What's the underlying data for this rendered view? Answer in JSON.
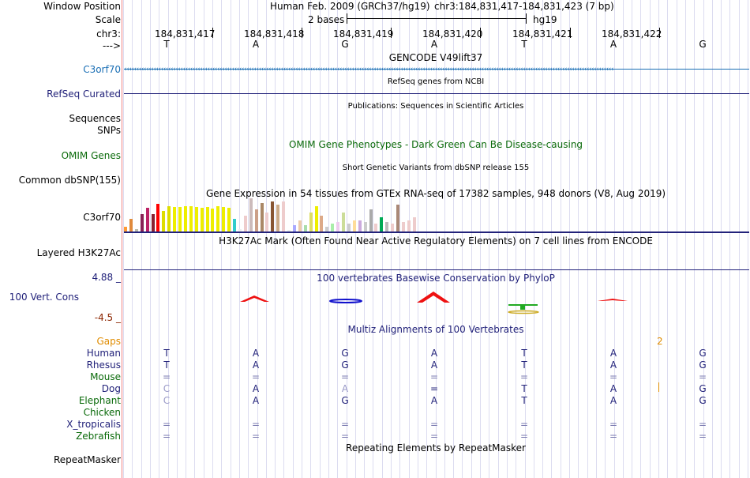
{
  "header": {
    "assembly_title": "Human Feb. 2009 (GRCh37/hg19)",
    "position": "chr3:184,831,417-184,831,423 (7 bp)",
    "scale_label": "2 bases",
    "scale_assembly": "hg19",
    "chrom_positions": [
      "184,831,417",
      "184,831,418",
      "184,831,419",
      "184,831,420",
      "184,831,421",
      "184,831,422"
    ],
    "bases": [
      "T",
      "A",
      "G",
      "A",
      "T",
      "A",
      "G"
    ]
  },
  "labels": {
    "window_position": "Window Position",
    "scale": "Scale",
    "chr": "chr3:",
    "strand": "--->",
    "c3orf70": "C3orf70",
    "refseq": "RefSeq Curated",
    "sequences": "Sequences",
    "snps": "SNPs",
    "omim": "OMIM Genes",
    "dbsnp": "Common dbSNP(155)",
    "gtex": "C3orf70",
    "h3k27ac": "Layered H3K27Ac",
    "cons_max": "4.88 _",
    "cons": "100 Vert. Cons",
    "cons_min": "-4.5 _",
    "gaps": "Gaps",
    "human": "Human",
    "rhesus": "Rhesus",
    "mouse": "Mouse",
    "dog": "Dog",
    "elephant": "Elephant",
    "chicken": "Chicken",
    "xtrop": "X_tropicalis",
    "zebrafish": "Zebrafish",
    "repeatmasker": "RepeatMasker"
  },
  "tracks": {
    "gencode_title": "GENCODE V49lift37",
    "refseq_title": "RefSeq genes from NCBI",
    "publications_title": "Publications: Sequences in Scientific Articles",
    "omim_title": "OMIM Gene Phenotypes - Dark Green Can Be Disease-causing",
    "dbsnp_title": "Short Genetic Variants from dbSNP release 155",
    "gtex_title": "Gene Expression in 54 tissues from GTEx RNA-seq of 17382 samples, 948 donors (V8, Aug 2019)",
    "h3k27ac_title": "H3K27Ac Mark (Often Found Near Active Regulatory Elements) on 7 cell lines from ENCODE",
    "phylop_title": "100 vertebrates Basewise Conservation by PhyloP",
    "multiz_title": "Multiz Alignments of 100 Vertebrates",
    "gap_value": "2",
    "repeatmasker_title": "Repeating Elements by RepeatMasker"
  },
  "alignment": {
    "human": [
      "T",
      "A",
      "G",
      "A",
      "T",
      "A",
      "G"
    ],
    "rhesus": [
      "T",
      "A",
      "G",
      "A",
      "T",
      "A",
      "G"
    ],
    "mouse": [
      "=",
      "=",
      "=",
      "=",
      "=",
      "=",
      "="
    ],
    "dog": [
      "C",
      "A",
      "A",
      "=",
      "T",
      "A",
      "G"
    ],
    "elephant": [
      "C",
      "A",
      "G",
      "A",
      "T",
      "A",
      "G"
    ],
    "xtrop": [
      "=",
      "=",
      "=",
      "=",
      "=",
      "=",
      "="
    ],
    "zebrafish": [
      "=",
      "=",
      "=",
      "=",
      "=",
      "=",
      "="
    ]
  },
  "colors": {
    "gene_blue": "#1a6fb5",
    "navy": "#22227a",
    "omim_green": "#0a6a0a",
    "gaps_orange": "#e08c00",
    "cons_min_red": "#8b2500",
    "separator": "#f08080",
    "mismatch_gray": "#7a7ab0"
  },
  "gtex_values": [
    6,
    16,
    3,
    22,
    30,
    22,
    35,
    26,
    32,
    31,
    31,
    32,
    32,
    31,
    30,
    31,
    29,
    32,
    31,
    30,
    16,
    3,
    20,
    42,
    28,
    36,
    24,
    38,
    34,
    38,
    2,
    8,
    14,
    8,
    24,
    32,
    20,
    6,
    10,
    12,
    24,
    10,
    14,
    14,
    12,
    28,
    10,
    18,
    12,
    10,
    34,
    12,
    14,
    18
  ],
  "gtex_colors": [
    "#ff9933",
    "#e08a3c",
    "#bba",
    "#882255",
    "#bb2266",
    "#882233",
    "#ff0000",
    "#dddd00",
    "#dddd00",
    "#eeee00",
    "#eeee00",
    "#eeee00",
    "#eeee00",
    "#eeee00",
    "#eeee00",
    "#eeee00",
    "#eeee00",
    "#eeee00",
    "#eeee00",
    "#eeee00",
    "#33cccc",
    "#eeeeee",
    "#eecccc",
    "#ccbbbb",
    "#cca088",
    "#aa8866",
    "#eecccc",
    "#885533",
    "#ccaa88",
    "#eecccc",
    "#eeeeee",
    "#aaaaff",
    "#eeccaa",
    "#aaddaa",
    "#dddd66",
    "#eeee00",
    "#ddaa88",
    "#cccccc",
    "#aaeeaa",
    "#eeccee",
    "#ccdd99",
    "#cccccc",
    "#ffdd99",
    "#ccaadd",
    "#cccccc",
    "#aaaaaa",
    "#eecccc",
    "#00aa55",
    "#bbbbbb",
    "#eecccc",
    "#aa8877",
    "#eecccc",
    "#eecccc",
    "#eecccc"
  ]
}
